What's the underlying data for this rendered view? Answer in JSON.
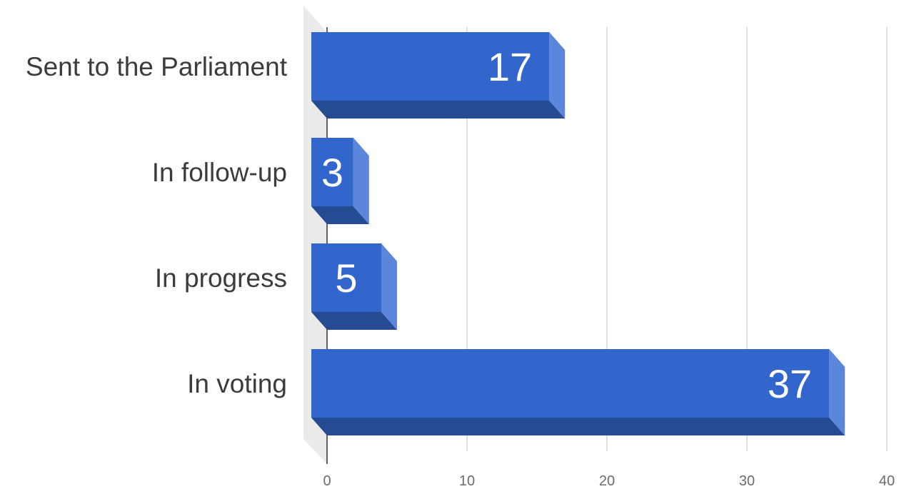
{
  "chart_data": {
    "type": "bar",
    "orientation": "horizontal",
    "style": "3d",
    "categories": [
      "Sent to the Parliament",
      "In follow-up",
      "In progress",
      "In voting"
    ],
    "values": [
      17,
      3,
      5,
      37
    ],
    "data_labels": [
      "17",
      "3",
      "5",
      "37"
    ],
    "title": "",
    "xlabel": "",
    "ylabel": "",
    "xlim": [
      0,
      40
    ],
    "x_ticks": [
      0,
      10,
      20,
      30,
      40
    ],
    "x_tick_labels": [
      "0",
      "10",
      "20",
      "30",
      "40"
    ],
    "grid": true,
    "legend": "none",
    "colors": {
      "bar_front": "#3366cc",
      "bar_side": "#5b86dc",
      "bar_bottom": "#254b93",
      "floor": "#ebebeb",
      "gridline": "#cccccc",
      "baseline": "#333333"
    }
  }
}
